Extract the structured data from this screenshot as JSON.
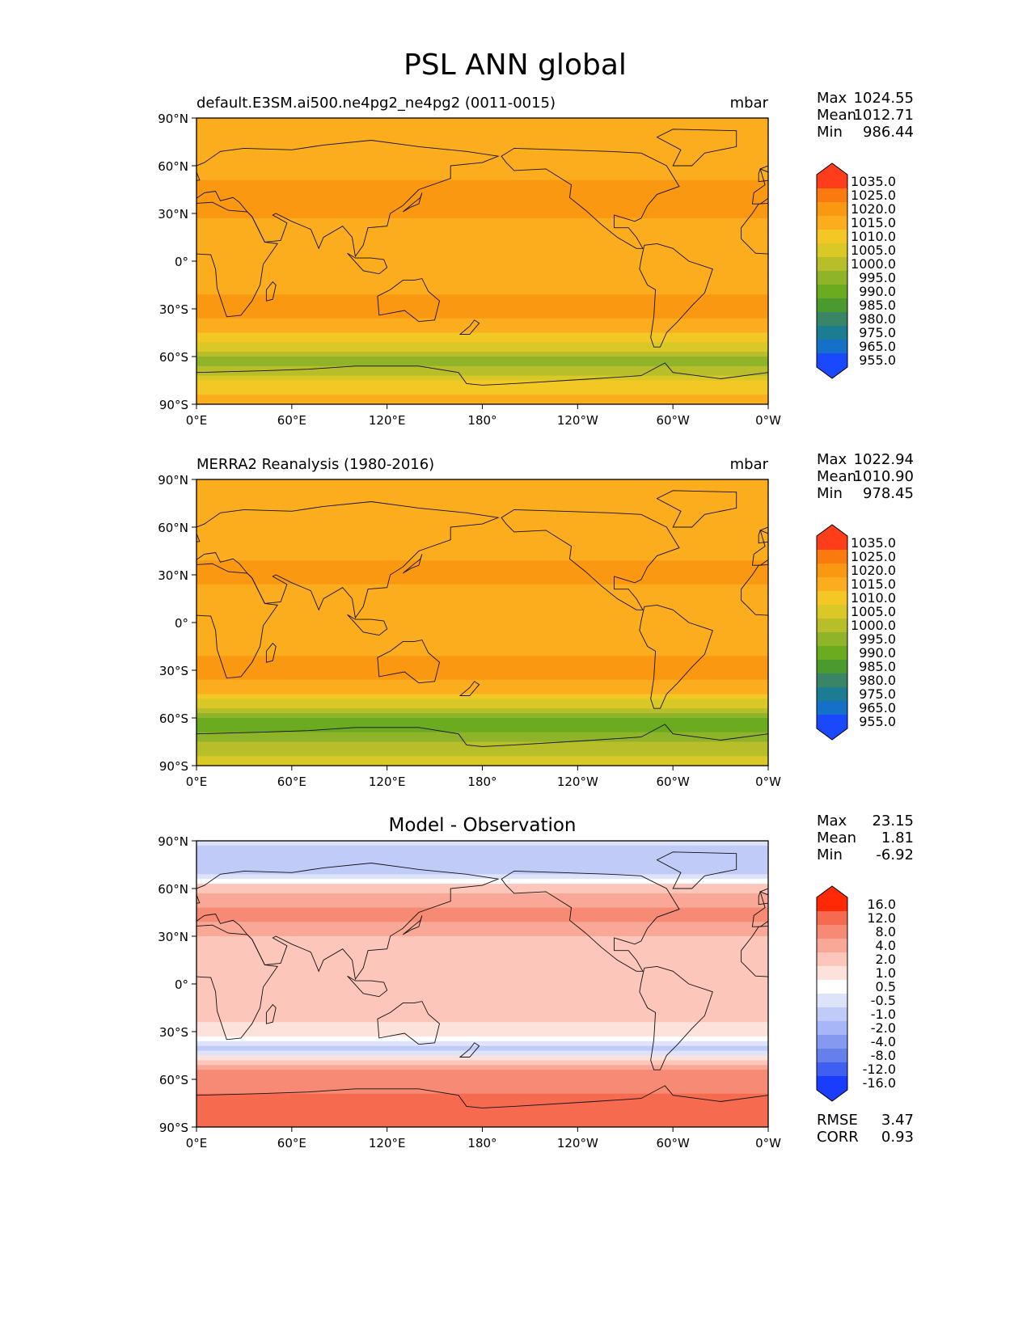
{
  "title": "PSL ANN global",
  "lat_ticks": [
    "90°N",
    "60°N",
    "30°N",
    "0°",
    "30°S",
    "60°S",
    "90°S"
  ],
  "lon_ticks": [
    "0°E",
    "60°E",
    "120°E",
    "180°",
    "120°W",
    "60°W",
    "0°W"
  ],
  "chart_data": [
    {
      "type": "heatmap",
      "title": "default.E3SM.ai500.ne4pg2_ne4pg2 (0011-0015)",
      "units": "mbar",
      "xlim": [
        0,
        360
      ],
      "ylim": [
        -90,
        90
      ],
      "stats_labels": [
        "Max",
        "Mean",
        "Min"
      ],
      "stats_values": [
        "1024.55",
        "1012.71",
        "986.44"
      ],
      "colorbar_ticks": [
        "1035.0",
        "1025.0",
        "1020.0",
        "1015.0",
        "1010.0",
        "1005.0",
        "1000.0",
        "995.0",
        "990.0",
        "985.0",
        "980.0",
        "975.0",
        "965.0",
        "955.0"
      ],
      "colorbar_colors": [
        "#ff3d1a",
        "#f7551a",
        "#fb7a10",
        "#fb9812",
        "#fbad1e",
        "#f4c824",
        "#d9c826",
        "#b8bd2a",
        "#8fb42a",
        "#6aab1f",
        "#4a9a30",
        "#3a8566",
        "#1c7d92",
        "#1470c8",
        "#1a48ff"
      ],
      "latitude_profile": [
        {
          "lat": 90,
          "value": 1012
        },
        {
          "lat": 75,
          "value": 1011
        },
        {
          "lat": 60,
          "value": 1010
        },
        {
          "lat": 45,
          "value": 1018
        },
        {
          "lat": 30,
          "value": 1016
        },
        {
          "lat": 15,
          "value": 1011
        },
        {
          "lat": 0,
          "value": 1010
        },
        {
          "lat": -15,
          "value": 1013
        },
        {
          "lat": -30,
          "value": 1018
        },
        {
          "lat": -45,
          "value": 1011
        },
        {
          "lat": -55,
          "value": 1001
        },
        {
          "lat": -62,
          "value": 991
        },
        {
          "lat": -68,
          "value": 997
        },
        {
          "lat": -75,
          "value": 1005
        },
        {
          "lat": -85,
          "value": 1011
        },
        {
          "lat": -90,
          "value": 1012
        }
      ]
    },
    {
      "type": "heatmap",
      "title": "MERRA2 Reanalysis (1980-2016)",
      "units": "mbar",
      "xlim": [
        0,
        360
      ],
      "ylim": [
        -90,
        90
      ],
      "stats_labels": [
        "Max",
        "Mean",
        "Min"
      ],
      "stats_values": [
        "1022.94",
        "1010.90",
        "978.45"
      ],
      "colorbar_ticks": [
        "1035.0",
        "1025.0",
        "1020.0",
        "1015.0",
        "1010.0",
        "1005.0",
        "1000.0",
        "995.0",
        "990.0",
        "985.0",
        "980.0",
        "975.0",
        "965.0",
        "955.0"
      ],
      "colorbar_colors": [
        "#ff3d1a",
        "#f7551a",
        "#fb7a10",
        "#fb9812",
        "#fbad1e",
        "#f4c824",
        "#d9c826",
        "#b8bd2a",
        "#8fb42a",
        "#6aab1f",
        "#4a9a30",
        "#3a8566",
        "#1c7d92",
        "#1470c8",
        "#1a48ff"
      ],
      "latitude_profile": [
        {
          "lat": 90,
          "value": 1011
        },
        {
          "lat": 75,
          "value": 1012
        },
        {
          "lat": 60,
          "value": 1011
        },
        {
          "lat": 45,
          "value": 1013
        },
        {
          "lat": 30,
          "value": 1017
        },
        {
          "lat": 15,
          "value": 1011
        },
        {
          "lat": 0,
          "value": 1010
        },
        {
          "lat": -15,
          "value": 1012
        },
        {
          "lat": -30,
          "value": 1018
        },
        {
          "lat": -45,
          "value": 1010
        },
        {
          "lat": -55,
          "value": 997
        },
        {
          "lat": -62,
          "value": 986
        },
        {
          "lat": -68,
          "value": 988
        },
        {
          "lat": -75,
          "value": 996
        },
        {
          "lat": -85,
          "value": 1001
        },
        {
          "lat": -90,
          "value": 1002
        }
      ]
    },
    {
      "type": "heatmap",
      "title": "Model - Observation",
      "units": "",
      "xlim": [
        0,
        360
      ],
      "ylim": [
        -90,
        90
      ],
      "stats_labels": [
        "Max",
        "Mean",
        "Min"
      ],
      "stats_values": [
        "23.15",
        "1.81",
        "-6.92"
      ],
      "colorbar_ticks": [
        "16.0",
        "12.0",
        "8.0",
        "4.0",
        "2.0",
        "1.0",
        "0.5",
        "-0.5",
        "-1.0",
        "-2.0",
        "-4.0",
        "-8.0",
        "-12.0",
        "-16.0"
      ],
      "colorbar_colors": [
        "#ff2a05",
        "#fb4a2a",
        "#f66a4f",
        "#f68a74",
        "#f9a898",
        "#fcc6bb",
        "#fde1db",
        "#ffffff",
        "#dde3fb",
        "#c0cbf8",
        "#a6b6f6",
        "#8599f0",
        "#6580ea",
        "#3e5ff0",
        "#1a3cff"
      ],
      "latitude_profile": [
        {
          "lat": 90,
          "value": -0.8
        },
        {
          "lat": 80,
          "value": -1.5
        },
        {
          "lat": 70,
          "value": -1.2
        },
        {
          "lat": 60,
          "value": 1.5
        },
        {
          "lat": 45,
          "value": 5
        },
        {
          "lat": 30,
          "value": 2
        },
        {
          "lat": 15,
          "value": 1.5
        },
        {
          "lat": 0,
          "value": 2
        },
        {
          "lat": -15,
          "value": 1.2
        },
        {
          "lat": -30,
          "value": 0.8
        },
        {
          "lat": -42,
          "value": -1.5
        },
        {
          "lat": -52,
          "value": 3
        },
        {
          "lat": -62,
          "value": 6
        },
        {
          "lat": -72,
          "value": 9
        },
        {
          "lat": -82,
          "value": 11
        },
        {
          "lat": -90,
          "value": 10
        }
      ],
      "extra_stats_labels": [
        "RMSE",
        "CORR"
      ],
      "extra_stats_values": [
        "3.47",
        "0.93"
      ]
    }
  ]
}
